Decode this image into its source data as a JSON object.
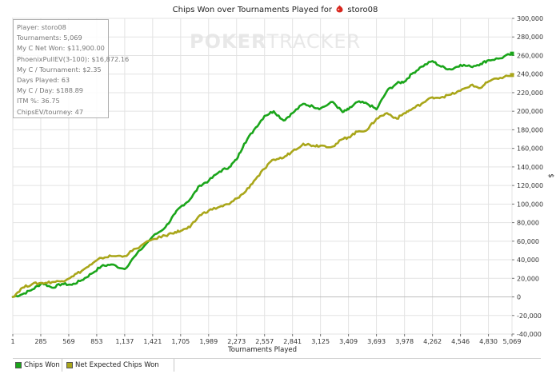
{
  "title": {
    "prefix": "Chips Won over Tournaments Played for",
    "player": "storo08"
  },
  "watermark": {
    "bold": "POKER",
    "thin": "TRACKER"
  },
  "stats": [
    "Player: storo08",
    "Tournaments: 5,069",
    "My C Net Won: $11,900.00",
    "PhoenixPullEV(3-100): $16,872.16",
    "My C / Tournament: $2.35",
    "Days Played: 63",
    "My C / Day: $188.89",
    "ITM %: 36.75",
    "ChipsEV/tourney: 47"
  ],
  "legend": [
    {
      "label": "Chips Won",
      "color": "#1aa51a"
    },
    {
      "label": "Net Expected Chips Won",
      "color": "#a9a61a"
    }
  ],
  "chart_data": {
    "type": "line",
    "title": "Chips Won over Tournaments Played for storo08",
    "xlabel": "Tournaments Played",
    "ylabel": "$",
    "xlim": [
      1,
      5069
    ],
    "ylim": [
      -40000,
      300000
    ],
    "x_ticks": [
      "1",
      "285",
      "569",
      "853",
      "1,137",
      "1,421",
      "1,705",
      "1,989",
      "2,273",
      "2,557",
      "2,841",
      "3,125",
      "3,409",
      "3,693",
      "3,978",
      "4,262",
      "4,546",
      "4,830",
      "5,069"
    ],
    "x_tick_values": [
      1,
      285,
      569,
      853,
      1137,
      1421,
      1705,
      1989,
      2273,
      2557,
      2841,
      3125,
      3409,
      3693,
      3978,
      4262,
      4546,
      4830,
      5069
    ],
    "y_ticks": [
      "-40,000",
      "-20,000",
      "0",
      "20,000",
      "40,000",
      "60,000",
      "80,000",
      "100,000",
      "120,000",
      "140,000",
      "160,000",
      "180,000",
      "200,000",
      "220,000",
      "240,000",
      "260,000",
      "280,000",
      "300,000"
    ],
    "y_tick_values": [
      -40000,
      -20000,
      0,
      20000,
      40000,
      60000,
      80000,
      100000,
      120000,
      140000,
      160000,
      180000,
      200000,
      220000,
      240000,
      260000,
      280000,
      300000
    ],
    "grid": true,
    "legend_position": "bottom",
    "series": [
      {
        "name": "Chips Won",
        "color": "#1aa51a",
        "x": [
          1,
          100,
          200,
          300,
          400,
          500,
          600,
          700,
          800,
          900,
          1000,
          1137,
          1250,
          1421,
          1550,
          1650,
          1705,
          1800,
          1900,
          1989,
          2100,
          2200,
          2273,
          2350,
          2450,
          2557,
          2650,
          2750,
          2841,
          2950,
          3050,
          3125,
          3250,
          3350,
          3409,
          3500,
          3600,
          3693,
          3800,
          3900,
          3978,
          4050,
          4150,
          4262,
          4350,
          4450,
          4546,
          4650,
          4750,
          4830,
          4950,
          5069
        ],
        "y": [
          0,
          3000,
          8000,
          15000,
          10000,
          14000,
          13000,
          18000,
          25000,
          33000,
          35000,
          30000,
          45000,
          65000,
          75000,
          90000,
          97000,
          105000,
          120000,
          125000,
          135000,
          140000,
          148000,
          165000,
          180000,
          195000,
          200000,
          190000,
          198000,
          208000,
          205000,
          203000,
          210000,
          199000,
          202000,
          210000,
          208000,
          202000,
          222000,
          230000,
          232000,
          240000,
          248000,
          254000,
          248000,
          245000,
          250000,
          248000,
          251000,
          255000,
          257000,
          262000
        ]
      },
      {
        "name": "Net Expected Chips Won",
        "color": "#a9a61a",
        "x": [
          1,
          100,
          200,
          300,
          400,
          500,
          600,
          700,
          800,
          900,
          1000,
          1137,
          1250,
          1421,
          1550,
          1650,
          1705,
          1800,
          1900,
          1989,
          2100,
          2200,
          2273,
          2350,
          2450,
          2557,
          2650,
          2750,
          2841,
          2950,
          3050,
          3125,
          3250,
          3350,
          3409,
          3500,
          3600,
          3693,
          3800,
          3900,
          3978,
          4050,
          4150,
          4262,
          4350,
          4450,
          4546,
          4650,
          4750,
          4830,
          4950,
          5069
        ],
        "y": [
          0,
          10000,
          14000,
          15000,
          16000,
          17000,
          22000,
          28000,
          35000,
          42000,
          44000,
          44000,
          52000,
          62000,
          66000,
          70000,
          71000,
          75000,
          88000,
          93000,
          97000,
          100000,
          106000,
          112000,
          125000,
          138000,
          148000,
          150000,
          157000,
          165000,
          163000,
          163000,
          162000,
          170000,
          172000,
          178000,
          180000,
          192000,
          198000,
          192000,
          198000,
          202000,
          208000,
          215000,
          215000,
          218000,
          222000,
          228000,
          225000,
          232000,
          236000,
          239000
        ]
      }
    ]
  }
}
